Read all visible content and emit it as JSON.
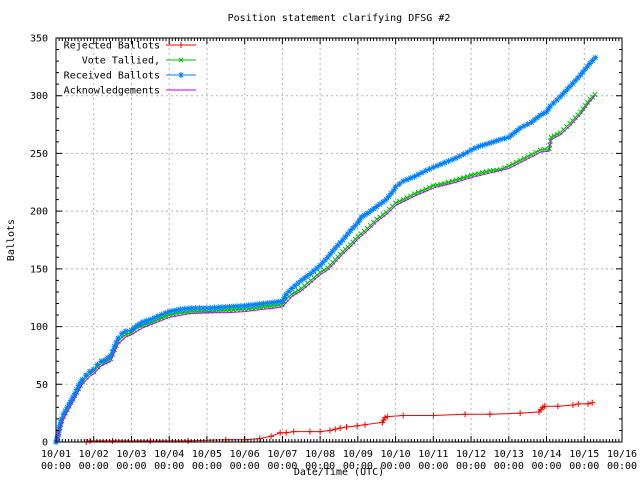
{
  "chart_data": {
    "type": "line",
    "title": "Position statement clarifying DFSG #2",
    "xlabel": "Date/Time (UTC)",
    "ylabel": "Ballots",
    "grid": true,
    "legend_position": "top-left-inside",
    "x_axis": {
      "tick_labels": [
        "10/01",
        "10/02",
        "10/03",
        "10/04",
        "10/05",
        "10/06",
        "10/07",
        "10/08",
        "10/09",
        "10/10",
        "10/11",
        "10/12",
        "10/13",
        "10/14",
        "10/15",
        "10/16"
      ],
      "tick_sub_label": "00:00",
      "range_days": [
        0,
        15
      ],
      "minor_ticks_per_day": 12
    },
    "y_axis": {
      "ticks": [
        0,
        50,
        100,
        150,
        200,
        250,
        300,
        350
      ],
      "min": 0,
      "max": 350,
      "minor_step": 10
    },
    "series": [
      {
        "name": "Rejected Ballots",
        "color": "#ff0000",
        "marker": "plus",
        "dense_markers": false,
        "points": [
          [
            0,
            0
          ],
          [
            0.8,
            0
          ],
          [
            0.9,
            1
          ],
          [
            1.5,
            1
          ],
          [
            2.5,
            1
          ],
          [
            3.5,
            1
          ],
          [
            4.5,
            2
          ],
          [
            5.0,
            2
          ],
          [
            5.4,
            3
          ],
          [
            5.7,
            5
          ],
          [
            5.94,
            8
          ],
          [
            6.1,
            8
          ],
          [
            6.3,
            9
          ],
          [
            6.73,
            9
          ],
          [
            7.0,
            9
          ],
          [
            7.26,
            10
          ],
          [
            7.4,
            11
          ],
          [
            7.53,
            12
          ],
          [
            7.7,
            13
          ],
          [
            7.98,
            14
          ],
          [
            8.19,
            15
          ],
          [
            8.65,
            17
          ],
          [
            8.68,
            19
          ],
          [
            8.72,
            21
          ],
          [
            8.78,
            22
          ],
          [
            9.2,
            23
          ],
          [
            10.0,
            23
          ],
          [
            10.84,
            24
          ],
          [
            11.5,
            24
          ],
          [
            12.3,
            25
          ],
          [
            12.8,
            26
          ],
          [
            12.85,
            28
          ],
          [
            12.9,
            30
          ],
          [
            12.95,
            31
          ],
          [
            13.3,
            31
          ],
          [
            13.7,
            32
          ],
          [
            13.84,
            33
          ],
          [
            14.1,
            33
          ],
          [
            14.21,
            34
          ]
        ]
      },
      {
        "name": "Vote Tallied,",
        "color": "#00c000",
        "marker": "cross",
        "dense_markers": true,
        "points": [
          [
            0,
            0
          ],
          [
            0.05,
            4
          ],
          [
            0.1,
            12
          ],
          [
            0.15,
            18
          ],
          [
            0.2,
            22
          ],
          [
            0.3,
            28
          ],
          [
            0.4,
            34
          ],
          [
            0.5,
            40
          ],
          [
            0.6,
            46
          ],
          [
            0.7,
            52
          ],
          [
            0.8,
            56
          ],
          [
            0.9,
            59
          ],
          [
            1.0,
            61
          ],
          [
            1.1,
            65
          ],
          [
            1.2,
            68
          ],
          [
            1.3,
            69
          ],
          [
            1.45,
            72
          ],
          [
            1.55,
            80
          ],
          [
            1.65,
            87
          ],
          [
            1.75,
            91
          ],
          [
            1.85,
            93
          ],
          [
            2.0,
            95
          ],
          [
            2.15,
            99
          ],
          [
            2.3,
            101
          ],
          [
            2.5,
            103
          ],
          [
            2.7,
            106
          ],
          [
            3.0,
            110
          ],
          [
            3.3,
            112
          ],
          [
            3.6,
            113
          ],
          [
            4.0,
            113
          ],
          [
            4.5,
            114
          ],
          [
            5.0,
            115
          ],
          [
            5.5,
            117
          ],
          [
            5.8,
            118
          ],
          [
            6.0,
            119
          ],
          [
            6.1,
            124
          ],
          [
            6.25,
            128
          ],
          [
            6.5,
            133
          ],
          [
            6.75,
            140
          ],
          [
            7.0,
            147
          ],
          [
            7.2,
            151
          ],
          [
            7.4,
            158
          ],
          [
            7.6,
            165
          ],
          [
            7.8,
            171
          ],
          [
            8.0,
            178
          ],
          [
            8.25,
            185
          ],
          [
            8.5,
            193
          ],
          [
            8.75,
            199
          ],
          [
            9.0,
            207
          ],
          [
            9.2,
            210
          ],
          [
            9.5,
            215
          ],
          [
            9.8,
            219
          ],
          [
            10.0,
            222
          ],
          [
            10.3,
            224
          ],
          [
            10.6,
            227
          ],
          [
            11.0,
            231
          ],
          [
            11.5,
            235
          ],
          [
            11.77,
            236
          ],
          [
            12.0,
            239
          ],
          [
            12.3,
            244
          ],
          [
            12.6,
            249
          ],
          [
            12.83,
            253
          ],
          [
            13.07,
            254
          ],
          [
            13.12,
            264
          ],
          [
            13.36,
            268
          ],
          [
            13.62,
            276
          ],
          [
            13.9,
            286
          ],
          [
            14.15,
            297
          ],
          [
            14.28,
            301
          ]
        ]
      },
      {
        "name": "Received Ballots",
        "color": "#0080ff",
        "marker": "star",
        "dense_markers": true,
        "points": [
          [
            0,
            0
          ],
          [
            0.05,
            5
          ],
          [
            0.1,
            14
          ],
          [
            0.15,
            20
          ],
          [
            0.2,
            24
          ],
          [
            0.3,
            30
          ],
          [
            0.4,
            36
          ],
          [
            0.5,
            42
          ],
          [
            0.6,
            49
          ],
          [
            0.7,
            54
          ],
          [
            0.8,
            58
          ],
          [
            0.9,
            61
          ],
          [
            1.0,
            63
          ],
          [
            1.1,
            67
          ],
          [
            1.2,
            70
          ],
          [
            1.3,
            71
          ],
          [
            1.45,
            75
          ],
          [
            1.55,
            83
          ],
          [
            1.65,
            90
          ],
          [
            1.75,
            94
          ],
          [
            1.85,
            96
          ],
          [
            2.0,
            97
          ],
          [
            2.15,
            101
          ],
          [
            2.3,
            104
          ],
          [
            2.5,
            106
          ],
          [
            2.7,
            109
          ],
          [
            3.0,
            113
          ],
          [
            3.3,
            115
          ],
          [
            3.6,
            116
          ],
          [
            4.0,
            116
          ],
          [
            4.5,
            117
          ],
          [
            5.0,
            118
          ],
          [
            5.5,
            120
          ],
          [
            5.8,
            121
          ],
          [
            6.0,
            122
          ],
          [
            6.1,
            128
          ],
          [
            6.25,
            133
          ],
          [
            6.5,
            140
          ],
          [
            6.75,
            146
          ],
          [
            7.0,
            153
          ],
          [
            7.2,
            160
          ],
          [
            7.4,
            168
          ],
          [
            7.6,
            175
          ],
          [
            7.8,
            183
          ],
          [
            8.0,
            190
          ],
          [
            8.1,
            195
          ],
          [
            8.25,
            198
          ],
          [
            8.5,
            204
          ],
          [
            8.75,
            210
          ],
          [
            8.95,
            218
          ],
          [
            9.0,
            221
          ],
          [
            9.2,
            226
          ],
          [
            9.5,
            230
          ],
          [
            9.8,
            235
          ],
          [
            10.0,
            238
          ],
          [
            10.3,
            242
          ],
          [
            10.6,
            246
          ],
          [
            10.9,
            251
          ],
          [
            11.0,
            253
          ],
          [
            11.2,
            256
          ],
          [
            11.5,
            259
          ],
          [
            11.77,
            262
          ],
          [
            12.0,
            264
          ],
          [
            12.3,
            272
          ],
          [
            12.6,
            277
          ],
          [
            12.83,
            283
          ],
          [
            13.0,
            286
          ],
          [
            13.1,
            291
          ],
          [
            13.36,
            299
          ],
          [
            13.62,
            308
          ],
          [
            13.9,
            318
          ],
          [
            14.15,
            328
          ],
          [
            14.29,
            333
          ]
        ]
      },
      {
        "name": "Acknowledgements",
        "color": "#c000ff",
        "marker": "none",
        "dense_markers": false,
        "points": [
          [
            0,
            0
          ],
          [
            0.1,
            11
          ],
          [
            0.2,
            20
          ],
          [
            0.3,
            26
          ],
          [
            0.5,
            38
          ],
          [
            0.7,
            50
          ],
          [
            0.9,
            57
          ],
          [
            1.0,
            59
          ],
          [
            1.2,
            66
          ],
          [
            1.45,
            70
          ],
          [
            1.65,
            85
          ],
          [
            1.85,
            91
          ],
          [
            2.0,
            93
          ],
          [
            2.3,
            99
          ],
          [
            2.7,
            104
          ],
          [
            3.0,
            108
          ],
          [
            3.5,
            111
          ],
          [
            4.0,
            112
          ],
          [
            4.5,
            112
          ],
          [
            5.0,
            113
          ],
          [
            5.5,
            115
          ],
          [
            5.8,
            116
          ],
          [
            6.0,
            117
          ],
          [
            6.25,
            126
          ],
          [
            6.5,
            131
          ],
          [
            6.75,
            138
          ],
          [
            7.0,
            145
          ],
          [
            7.2,
            149
          ],
          [
            7.4,
            156
          ],
          [
            7.6,
            163
          ],
          [
            7.8,
            169
          ],
          [
            8.0,
            176
          ],
          [
            8.25,
            183
          ],
          [
            8.5,
            191
          ],
          [
            8.75,
            197
          ],
          [
            9.0,
            205
          ],
          [
            9.5,
            213
          ],
          [
            10.0,
            220
          ],
          [
            10.6,
            225
          ],
          [
            11.0,
            229
          ],
          [
            11.5,
            233
          ],
          [
            12.0,
            237
          ],
          [
            12.3,
            242
          ],
          [
            12.6,
            247
          ],
          [
            12.83,
            251
          ],
          [
            13.07,
            252
          ],
          [
            13.12,
            262
          ],
          [
            13.36,
            266
          ],
          [
            13.62,
            274
          ],
          [
            13.9,
            284
          ],
          [
            14.15,
            295
          ],
          [
            14.28,
            300
          ]
        ]
      }
    ]
  }
}
